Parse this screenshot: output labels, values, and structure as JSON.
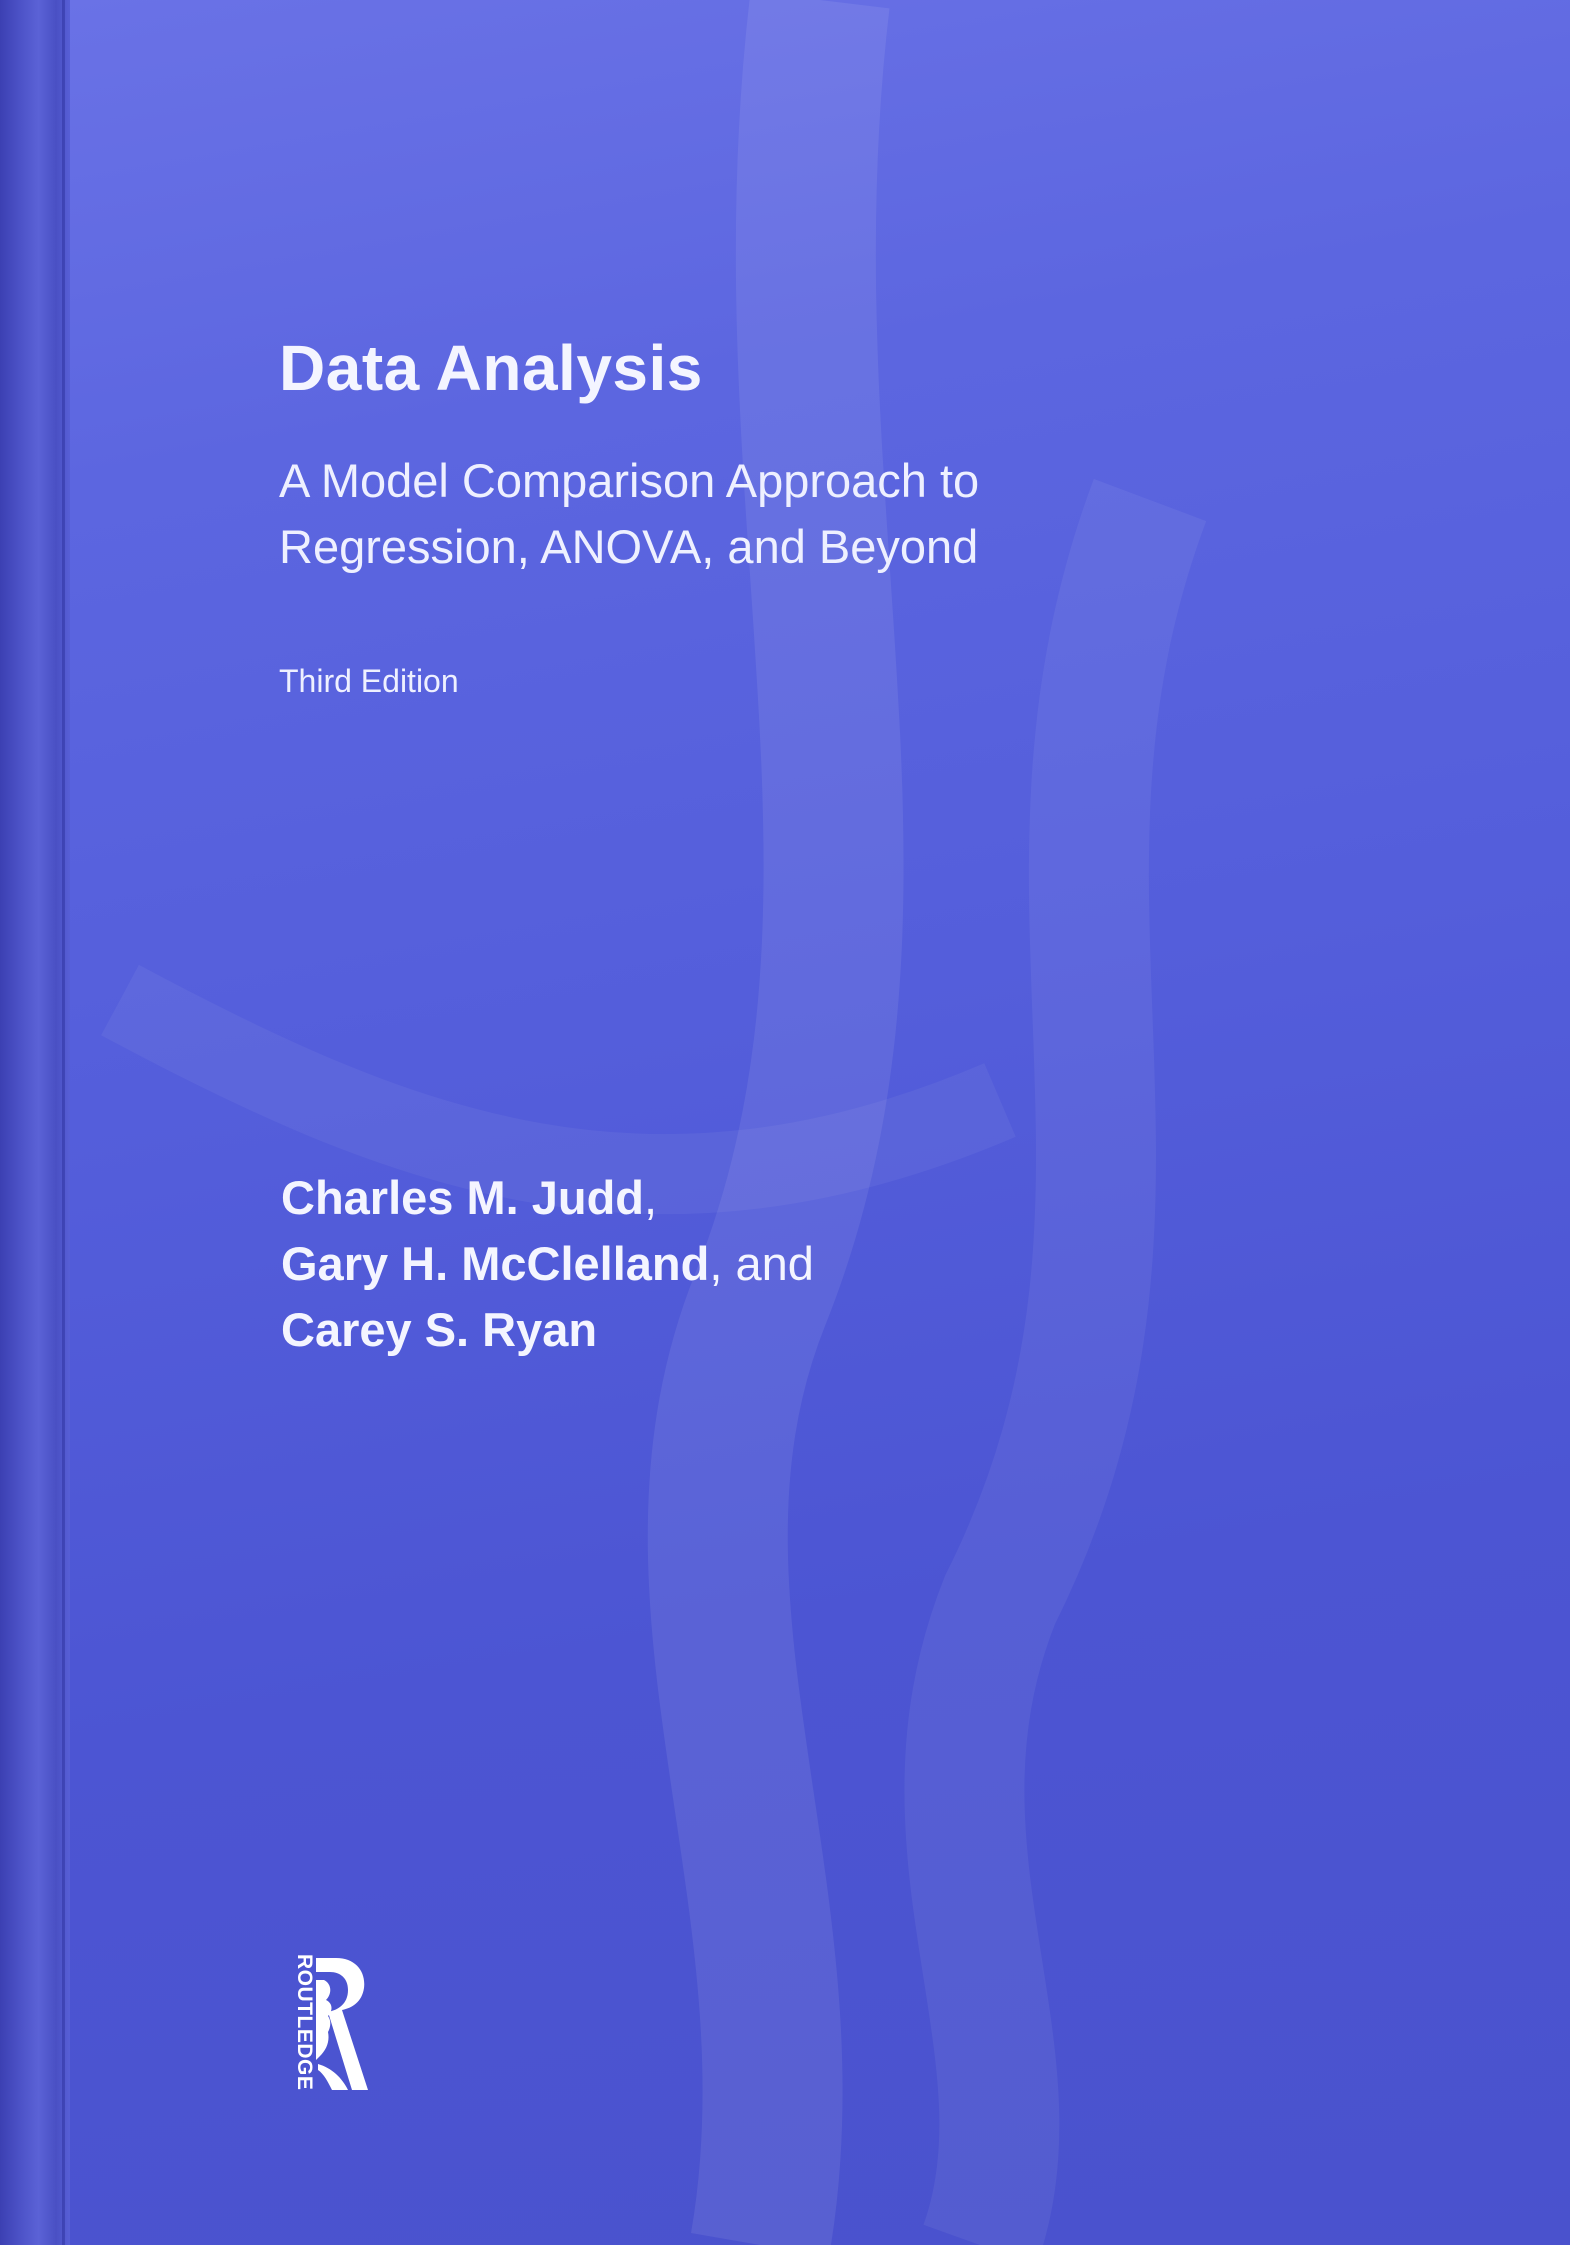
{
  "book": {
    "title": "Data Analysis",
    "subtitle_lines": [
      "A Model Comparison Approach to",
      "Regression, ANOVA, and Beyond"
    ],
    "edition": "Third Edition",
    "authors": [
      {
        "name": "Charles M. Judd",
        "suffix": ","
      },
      {
        "name": "Gary H. McClelland",
        "suffix": ", and"
      },
      {
        "name": "Carey S. Ryan",
        "suffix": ""
      }
    ],
    "publisher": {
      "logo_icon": "routledge-logo-icon",
      "logo_text": "ROUTLEDGE"
    }
  },
  "colors": {
    "cover_blue": "#5560dc",
    "text": "#ffffff"
  }
}
